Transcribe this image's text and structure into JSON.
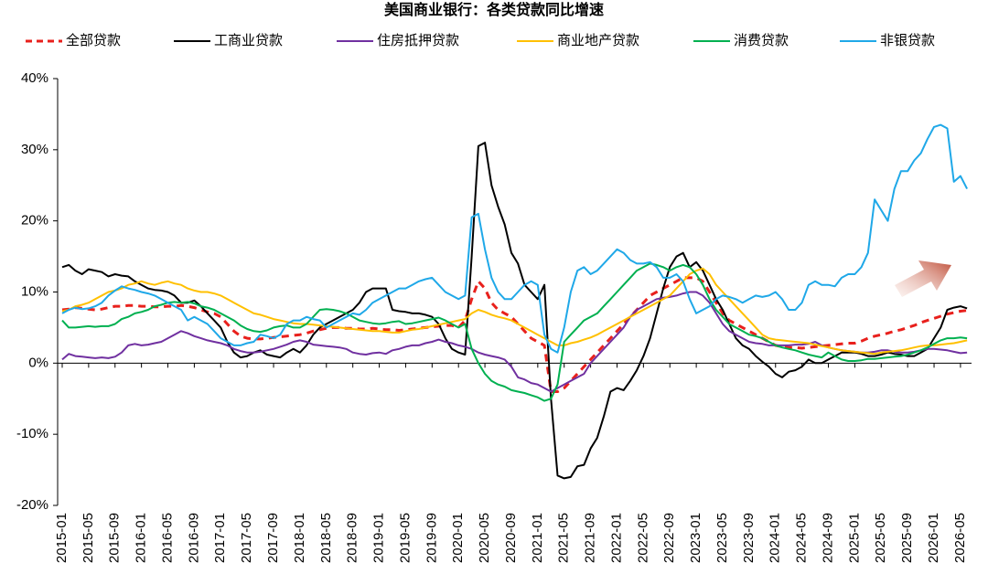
{
  "chart_data": {
    "type": "line",
    "title": "美国商业银行：各类贷款同比增速",
    "categories": [
      "2015-01",
      null,
      null,
      null,
      "2015-05",
      null,
      null,
      null,
      "2015-09",
      null,
      null,
      null,
      "2016-01",
      null,
      null,
      null,
      "2016-05",
      null,
      null,
      null,
      "2016-09",
      null,
      null,
      null,
      "2017-01",
      null,
      null,
      null,
      "2017-05",
      null,
      null,
      null,
      "2017-09",
      null,
      null,
      null,
      "2018-01",
      null,
      null,
      null,
      "2018-05",
      null,
      null,
      null,
      "2018-09",
      null,
      null,
      null,
      "2019-01",
      null,
      null,
      null,
      "2019-05",
      null,
      null,
      null,
      "2019-09",
      null,
      null,
      null,
      "2020-01",
      null,
      null,
      null,
      "2020-05",
      null,
      null,
      null,
      "2020-09",
      null,
      null,
      null,
      "2021-01",
      null,
      null,
      null,
      "2021-05",
      null,
      null,
      null,
      "2021-09",
      null,
      null,
      null,
      "2022-01",
      null,
      null,
      null,
      "2022-05",
      null,
      null,
      null,
      "2022-09",
      null,
      null,
      null,
      "2023-01",
      null,
      null,
      null,
      "2023-05",
      null,
      null,
      null,
      "2023-09",
      null,
      null,
      null,
      "2024-01",
      null,
      null,
      null,
      "2024-05",
      null,
      null,
      null,
      "2024-09",
      null,
      null,
      null,
      "2025-01",
      null,
      null,
      null,
      "2025-05",
      null,
      null,
      null,
      "2025-09",
      null,
      null,
      null,
      "2026-01",
      null,
      null,
      null,
      "2026-05",
      null
    ],
    "series": [
      {
        "name": "全部贷款",
        "color": "#e8201c",
        "dashed": true,
        "values": [
          7.5,
          7.6,
          7.8,
          7.7,
          7.6,
          7.5,
          7.6,
          7.8,
          8.0,
          8.0,
          8.1,
          8.1,
          8.0,
          8.0,
          7.9,
          7.9,
          8.0,
          8.0,
          8.1,
          8.0,
          7.8,
          7.5,
          7.2,
          7.0,
          6.5,
          5.5,
          4.5,
          3.8,
          3.5,
          3.4,
          3.4,
          3.5,
          3.6,
          3.7,
          3.8,
          3.9,
          4.0,
          4.2,
          4.5,
          4.7,
          4.9,
          5.0,
          5.0,
          4.9,
          4.9,
          4.8,
          4.8,
          4.9,
          4.8,
          4.7,
          4.7,
          4.6,
          4.7,
          4.8,
          4.9,
          5.0,
          5.1,
          5.2,
          5.3,
          5.3,
          5.0,
          6.0,
          9.0,
          11.5,
          10.5,
          8.5,
          7.5,
          7.0,
          6.5,
          5.5,
          4.5,
          3.5,
          3.0,
          2.5,
          -4.0,
          -4.0,
          -3.5,
          -2.5,
          -1.5,
          -0.5,
          0.5,
          1.5,
          2.5,
          3.5,
          4.5,
          5.5,
          6.5,
          7.5,
          8.5,
          9.5,
          10.0,
          10.5,
          11.0,
          11.5,
          12.0,
          12.0,
          12.0,
          11.5,
          10.0,
          8.5,
          7.0,
          6.0,
          5.5,
          5.0,
          4.5,
          4.0,
          3.5,
          3.0,
          2.5,
          2.3,
          2.2,
          2.2,
          2.1,
          2.2,
          2.3,
          2.4,
          2.5,
          2.6,
          2.7,
          2.8,
          2.8,
          3.1,
          3.5,
          3.8,
          4.0,
          4.2,
          4.5,
          4.7,
          5.0,
          5.3,
          5.7,
          6.0,
          6.3,
          6.6,
          6.9,
          7.1,
          7.3,
          7.4
        ]
      },
      {
        "name": "工商业贷款",
        "color": "#000000",
        "values": [
          13.5,
          13.8,
          13.0,
          12.5,
          13.2,
          13.0,
          12.8,
          12.2,
          12.5,
          12.3,
          12.2,
          11.5,
          11.0,
          10.5,
          10.3,
          10.2,
          10.0,
          9.5,
          8.5,
          8.5,
          8.8,
          8.0,
          7.0,
          6.0,
          5.0,
          3.0,
          1.5,
          0.8,
          1.0,
          1.5,
          1.8,
          1.2,
          1.0,
          0.8,
          1.5,
          2.0,
          1.5,
          2.5,
          4.0,
          5.0,
          5.5,
          6.0,
          6.5,
          7.0,
          7.5,
          8.5,
          10.0,
          10.5,
          10.5,
          10.5,
          7.5,
          7.3,
          7.2,
          7.0,
          7.0,
          6.8,
          6.5,
          5.5,
          3.5,
          2.0,
          1.5,
          1.2,
          15.0,
          30.5,
          31.0,
          25.0,
          22.0,
          19.5,
          15.5,
          14.0,
          11.0,
          10.0,
          9.0,
          11.0,
          -5.0,
          -15.8,
          -16.2,
          -16.0,
          -14.5,
          -14.3,
          -12.0,
          -10.5,
          -7.5,
          -4.0,
          -3.5,
          -3.8,
          -2.5,
          -1.0,
          1.0,
          3.5,
          7.0,
          10.5,
          13.5,
          15.0,
          15.5,
          13.5,
          14.2,
          13.0,
          11.0,
          9.0,
          7.5,
          5.5,
          3.5,
          2.5,
          2.0,
          1.0,
          0.2,
          -0.5,
          -1.5,
          -2.0,
          -1.2,
          -1.0,
          -0.5,
          0.5,
          0.0,
          0.0,
          0.5,
          1.0,
          1.5,
          1.5,
          1.5,
          1.3,
          1.0,
          1.0,
          1.2,
          1.5,
          1.3,
          1.2,
          1.0,
          1.0,
          1.5,
          2.0,
          3.5,
          5.0,
          7.5,
          7.8,
          8.0,
          7.7
        ]
      },
      {
        "name": "住房抵押贷款",
        "color": "#7030a0",
        "values": [
          0.5,
          1.3,
          1.0,
          0.9,
          0.8,
          0.7,
          0.8,
          0.7,
          0.9,
          1.5,
          2.5,
          2.7,
          2.5,
          2.6,
          2.8,
          3.0,
          3.5,
          4.0,
          4.5,
          4.2,
          3.8,
          3.5,
          3.2,
          3.0,
          2.8,
          2.5,
          2.0,
          1.7,
          1.5,
          1.5,
          1.6,
          1.8,
          2.0,
          2.3,
          2.6,
          3.0,
          3.2,
          3.0,
          2.6,
          2.5,
          2.4,
          2.3,
          2.2,
          2.0,
          1.5,
          1.3,
          1.2,
          1.4,
          1.5,
          1.3,
          1.8,
          2.0,
          2.3,
          2.5,
          2.5,
          2.8,
          3.0,
          3.3,
          3.0,
          2.8,
          2.5,
          2.3,
          2.0,
          1.5,
          1.2,
          1.0,
          0.8,
          0.5,
          -0.5,
          -2.0,
          -2.3,
          -2.8,
          -3.0,
          -3.5,
          -4.0,
          -3.5,
          -3.0,
          -2.5,
          -2.0,
          -1.5,
          0.0,
          1.0,
          2.0,
          3.0,
          4.0,
          5.0,
          6.5,
          7.5,
          8.0,
          8.5,
          9.0,
          9.2,
          9.3,
          9.5,
          9.8,
          10.0,
          10.0,
          9.5,
          8.5,
          7.0,
          5.5,
          4.5,
          4.0,
          3.5,
          3.0,
          2.8,
          2.7,
          2.5,
          2.5,
          2.5,
          2.5,
          2.6,
          2.6,
          2.7,
          3.0,
          2.5,
          2.2,
          2.0,
          1.8,
          1.7,
          1.6,
          1.5,
          1.5,
          1.6,
          1.8,
          1.8,
          1.6,
          1.5,
          1.5,
          1.6,
          1.8,
          2.0,
          2.0,
          1.9,
          1.8,
          1.6,
          1.4,
          1.5
        ]
      },
      {
        "name": "商业地产贷款",
        "color": "#ffc000",
        "values": [
          7.3,
          7.5,
          8.0,
          8.2,
          8.5,
          9.0,
          9.5,
          10.0,
          10.2,
          10.5,
          11.0,
          11.2,
          11.5,
          11.2,
          11.0,
          11.3,
          11.5,
          11.2,
          11.0,
          10.5,
          10.2,
          10.0,
          10.0,
          9.8,
          9.5,
          9.0,
          8.5,
          8.0,
          7.5,
          7.0,
          6.8,
          6.5,
          6.2,
          6.0,
          5.8,
          5.6,
          5.5,
          5.5,
          5.4,
          5.3,
          5.2,
          5.1,
          5.0,
          4.9,
          4.8,
          4.7,
          4.6,
          4.5,
          4.5,
          4.4,
          4.3,
          4.3,
          4.5,
          4.7,
          4.8,
          5.0,
          5.2,
          5.4,
          5.6,
          5.8,
          6.0,
          6.2,
          7.0,
          7.5,
          7.2,
          6.8,
          6.5,
          6.3,
          6.0,
          5.5,
          5.0,
          4.5,
          4.0,
          3.5,
          3.0,
          2.5,
          2.5,
          2.8,
          3.0,
          3.3,
          3.6,
          4.0,
          4.5,
          5.0,
          5.5,
          6.0,
          6.5,
          7.0,
          7.5,
          8.0,
          8.5,
          9.0,
          9.5,
          10.5,
          11.5,
          12.5,
          13.0,
          13.3,
          12.5,
          11.0,
          10.0,
          9.0,
          8.0,
          7.0,
          6.0,
          5.0,
          4.0,
          3.5,
          3.3,
          3.2,
          3.1,
          3.0,
          2.9,
          2.8,
          2.6,
          2.4,
          2.2,
          2.0,
          1.8,
          1.7,
          1.6,
          1.5,
          1.4,
          1.3,
          1.5,
          1.6,
          1.7,
          1.8,
          2.0,
          2.2,
          2.4,
          2.5,
          2.5,
          2.6,
          2.7,
          2.8,
          3.0,
          3.2
        ]
      },
      {
        "name": "消费贷款",
        "color": "#00b050",
        "values": [
          6.0,
          5.0,
          5.0,
          5.1,
          5.2,
          5.1,
          5.2,
          5.2,
          5.5,
          6.2,
          6.5,
          7.0,
          7.2,
          7.5,
          8.0,
          8.2,
          8.5,
          8.6,
          8.5,
          8.6,
          8.4,
          8.0,
          7.8,
          7.5,
          7.0,
          6.5,
          6.0,
          5.3,
          4.8,
          4.5,
          4.4,
          4.6,
          5.0,
          5.2,
          5.3,
          5.0,
          5.0,
          5.5,
          6.5,
          7.5,
          7.6,
          7.5,
          7.3,
          7.0,
          6.5,
          6.0,
          5.8,
          5.6,
          5.5,
          5.6,
          5.8,
          5.9,
          5.5,
          5.6,
          5.8,
          6.0,
          6.2,
          6.4,
          6.0,
          5.5,
          5.0,
          5.5,
          2.0,
          0.0,
          -1.5,
          -2.5,
          -3.0,
          -3.3,
          -3.8,
          -4.0,
          -4.2,
          -4.5,
          -4.8,
          -5.3,
          -5.0,
          -3.0,
          3.0,
          4.0,
          5.0,
          6.0,
          6.5,
          7.0,
          8.0,
          9.0,
          10.0,
          11.0,
          12.0,
          13.0,
          13.5,
          14.0,
          13.8,
          13.5,
          13.0,
          13.5,
          13.8,
          13.5,
          12.5,
          11.0,
          9.0,
          7.5,
          6.5,
          5.5,
          5.0,
          4.5,
          4.0,
          3.8,
          3.5,
          3.0,
          2.5,
          2.2,
          2.0,
          1.8,
          1.5,
          1.2,
          1.0,
          0.8,
          1.5,
          1.0,
          0.5,
          0.3,
          0.3,
          0.4,
          0.6,
          0.6,
          0.7,
          0.8,
          0.9,
          1.0,
          1.2,
          1.5,
          1.8,
          2.2,
          2.7,
          3.2,
          3.5,
          3.5,
          3.6,
          3.5
        ]
      },
      {
        "name": "非银贷款",
        "color": "#1fa8e8",
        "values": [
          7.0,
          7.5,
          7.8,
          7.6,
          7.7,
          8.0,
          8.5,
          9.5,
          10.2,
          10.8,
          10.5,
          10.3,
          10.0,
          9.8,
          9.5,
          9.0,
          8.5,
          8.0,
          7.5,
          6.0,
          6.5,
          6.0,
          5.5,
          4.5,
          3.5,
          3.0,
          2.5,
          2.5,
          2.8,
          3.0,
          4.0,
          3.8,
          3.5,
          4.0,
          5.5,
          6.0,
          6.0,
          6.5,
          6.2,
          6.0,
          5.0,
          5.5,
          6.0,
          6.5,
          7.0,
          6.8,
          7.5,
          8.5,
          9.0,
          9.5,
          10.0,
          10.5,
          10.5,
          11.0,
          11.5,
          11.8,
          12.0,
          11.0,
          10.0,
          9.5,
          9.0,
          9.5,
          20.5,
          21.0,
          16.0,
          12.0,
          10.0,
          9.0,
          9.0,
          10.0,
          11.0,
          11.5,
          11.0,
          4.0,
          2.0,
          1.5,
          5.0,
          10.0,
          13.0,
          13.5,
          12.5,
          13.0,
          14.0,
          15.0,
          16.0,
          15.5,
          14.5,
          14.0,
          14.0,
          14.2,
          13.5,
          12.0,
          12.0,
          12.5,
          11.5,
          9.0,
          7.0,
          7.5,
          8.0,
          9.0,
          9.5,
          9.3,
          9.0,
          8.5,
          9.0,
          9.5,
          9.3,
          9.5,
          10.0,
          9.0,
          7.5,
          7.5,
          8.5,
          11.0,
          11.5,
          11.0,
          11.0,
          10.8,
          12.0,
          12.5,
          12.5,
          13.5,
          15.5,
          23.0,
          21.5,
          20.0,
          24.5,
          27.0,
          27.0,
          28.5,
          29.5,
          31.5,
          33.2,
          33.5,
          33.0,
          25.5,
          26.3,
          24.5
        ]
      }
    ],
    "ylim": [
      -20,
      40
    ],
    "yticks": [
      {
        "value": -20,
        "label": "-20%"
      },
      {
        "value": -10,
        "label": "-10%"
      },
      {
        "value": 0,
        "label": "0%"
      },
      {
        "value": 10,
        "label": "10%"
      },
      {
        "value": 20,
        "label": "20%"
      },
      {
        "value": 30,
        "label": "30%"
      },
      {
        "value": 40,
        "label": "40%"
      }
    ],
    "legend": "top"
  }
}
